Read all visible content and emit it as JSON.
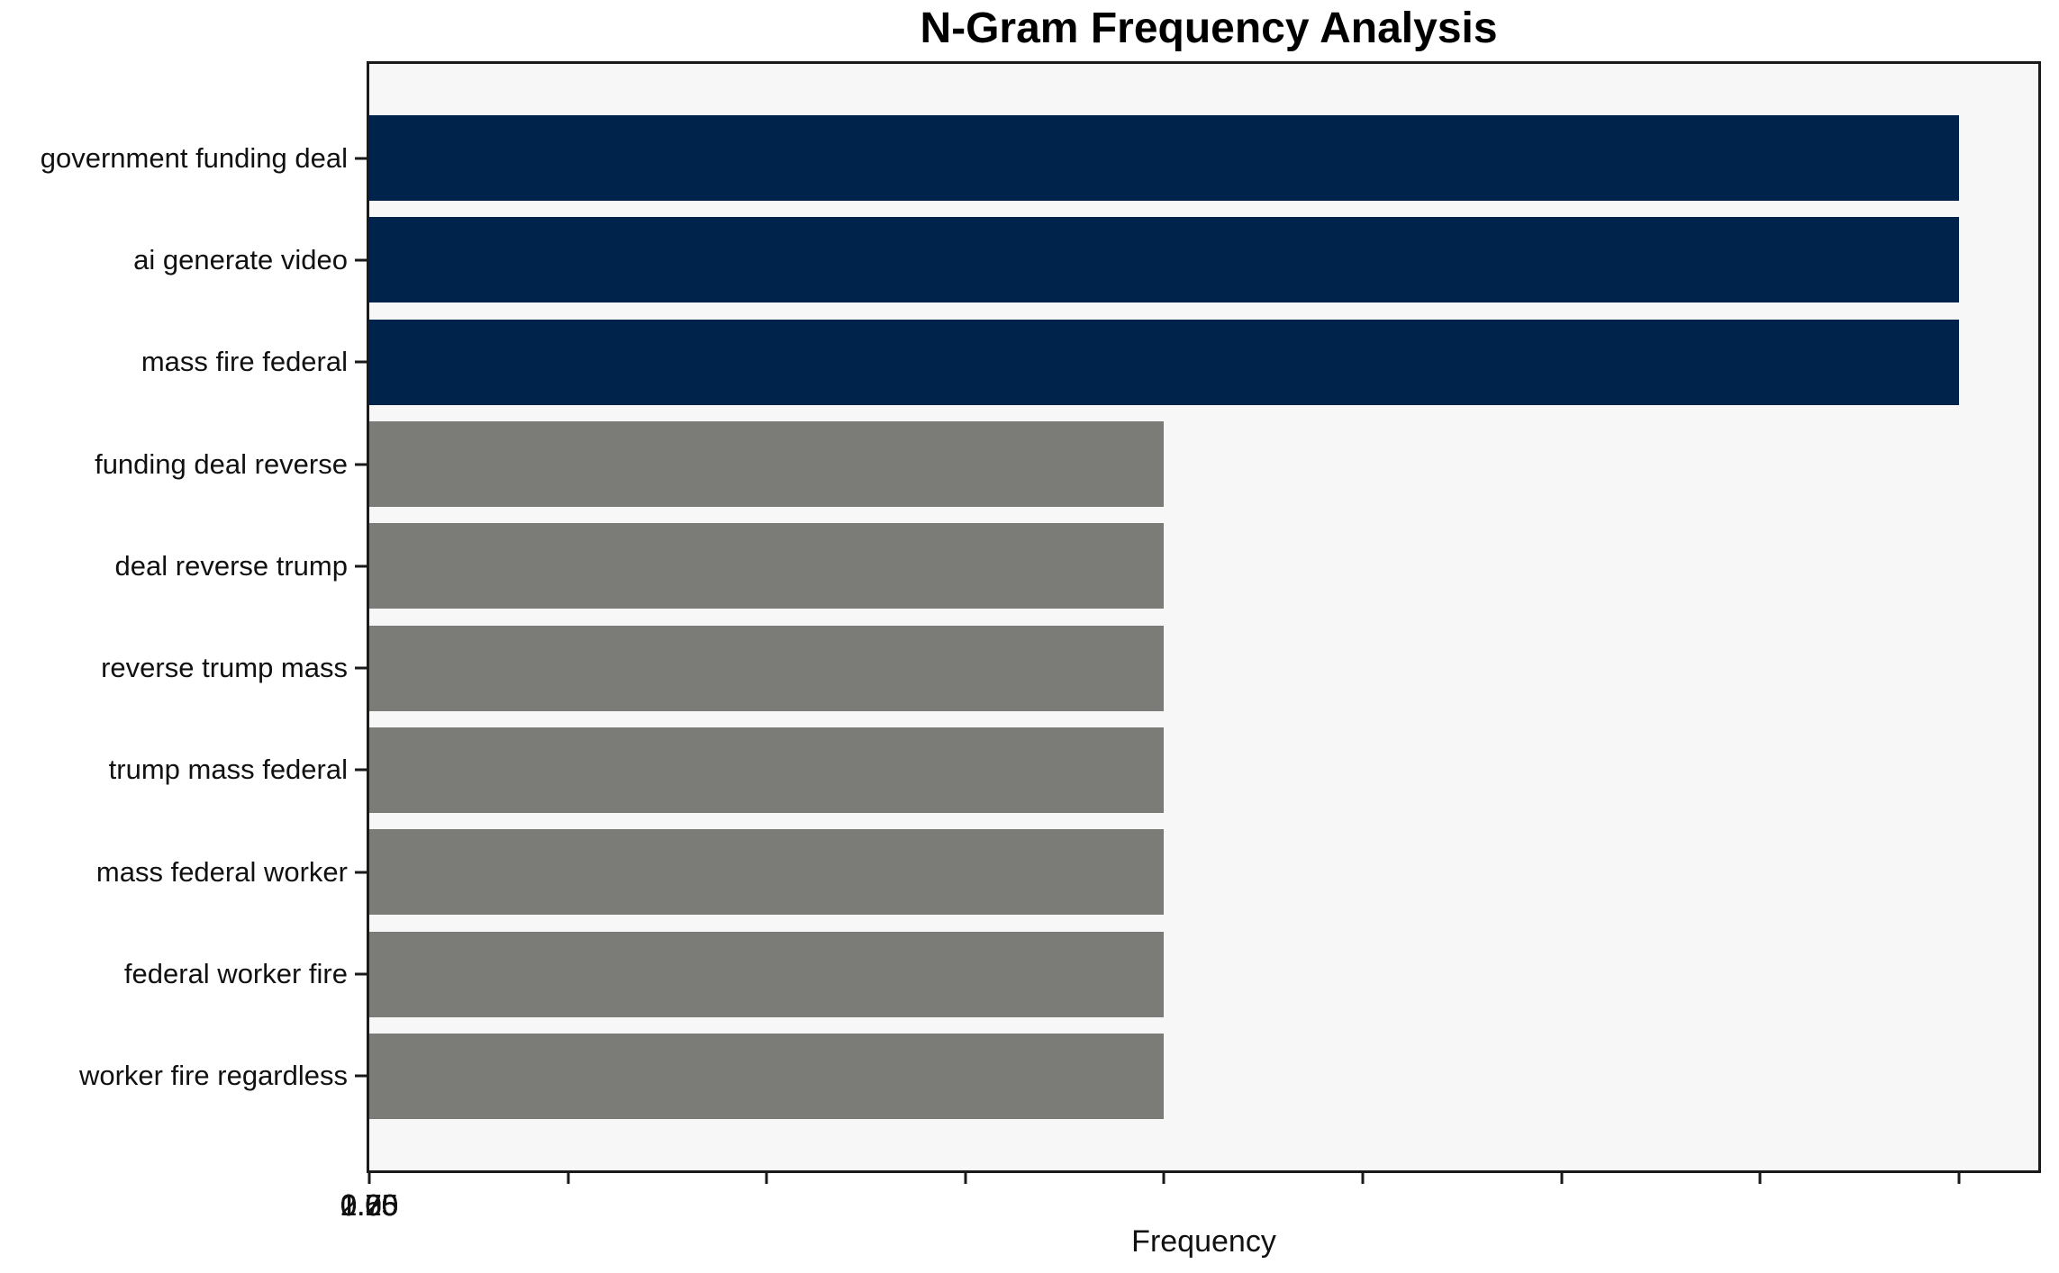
{
  "chart_data": {
    "type": "bar",
    "orientation": "horizontal",
    "title": "N-Gram Frequency Analysis",
    "xlabel": "Frequency",
    "ylabel": "",
    "categories": [
      "government funding deal",
      "ai generate video",
      "mass fire federal",
      "funding deal reverse",
      "deal reverse trump",
      "reverse trump mass",
      "trump mass federal",
      "mass federal worker",
      "federal worker fire",
      "worker fire regardless"
    ],
    "values": [
      2,
      2,
      2,
      1,
      1,
      1,
      1,
      1,
      1,
      1
    ],
    "bar_colors": [
      "#00234B",
      "#00234B",
      "#00234B",
      "#7B7B78",
      "#7B7B78",
      "#7B7B78",
      "#7B7B78",
      "#7B7B78",
      "#7B7B78",
      "#7B7B78"
    ],
    "xlim": [
      0,
      2.1
    ],
    "xticks": [
      0,
      0.25,
      0.5,
      0.75,
      1,
      1.25,
      1.5,
      1.75,
      2
    ],
    "xtick_labels": [
      "0.00",
      "0.25",
      "0.50",
      "0.75",
      "1.00",
      "1.25",
      "1.50",
      "1.75",
      "2.00"
    ],
    "grid": false,
    "legend_position": "none",
    "plot_background": "#F7F7F7",
    "figure_background": "#FFFFFF",
    "spine_color": "#1A1A1A",
    "text_color": "#111111"
  }
}
